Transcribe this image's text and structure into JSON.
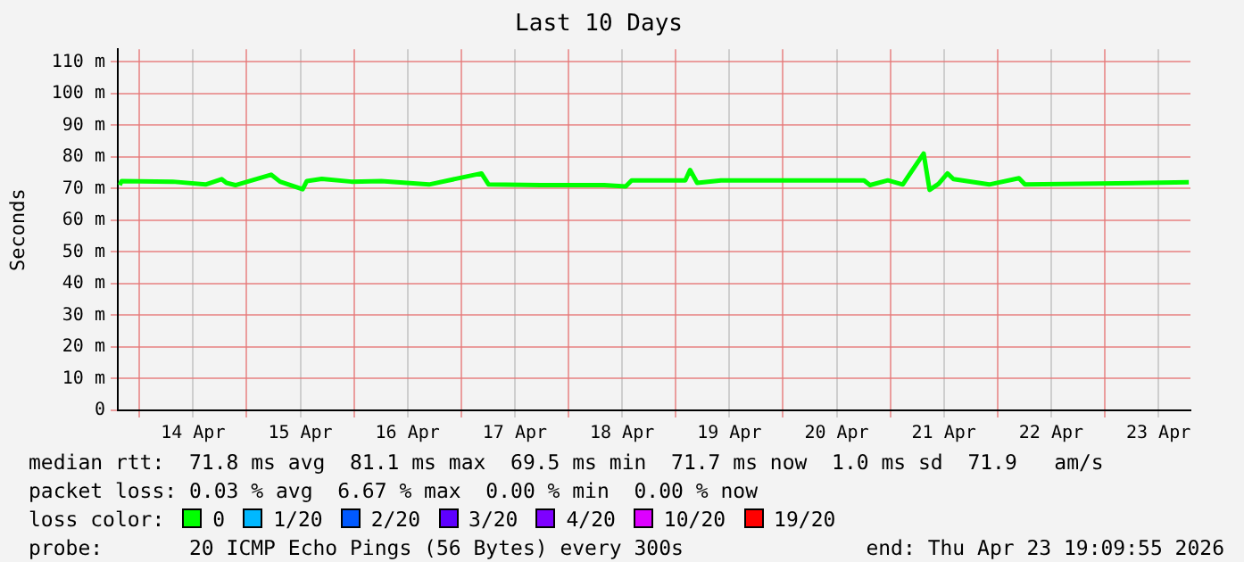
{
  "chart_data": {
    "type": "line",
    "title": "Last 10 Days",
    "ylabel": "Seconds",
    "legend_title": "loss color:",
    "legend": "bottom",
    "xlim": [
      "2026-04-13T19:10",
      "2026-04-23T19:10"
    ],
    "xticks": [
      {
        "value": "2026-04-14T00:00",
        "label": null
      },
      {
        "value": "2026-04-14T12:00",
        "label": "14 Apr"
      },
      {
        "value": "2026-04-15T00:00",
        "label": null
      },
      {
        "value": "2026-04-15T12:00",
        "label": "15 Apr"
      },
      {
        "value": "2026-04-16T00:00",
        "label": null
      },
      {
        "value": "2026-04-16T12:00",
        "label": "16 Apr"
      },
      {
        "value": "2026-04-17T00:00",
        "label": null
      },
      {
        "value": "2026-04-17T12:00",
        "label": "17 Apr"
      },
      {
        "value": "2026-04-18T00:00",
        "label": null
      },
      {
        "value": "2026-04-18T12:00",
        "label": "18 Apr"
      },
      {
        "value": "2026-04-19T00:00",
        "label": null
      },
      {
        "value": "2026-04-19T12:00",
        "label": "19 Apr"
      },
      {
        "value": "2026-04-20T00:00",
        "label": null
      },
      {
        "value": "2026-04-20T12:00",
        "label": "20 Apr"
      },
      {
        "value": "2026-04-21T00:00",
        "label": null
      },
      {
        "value": "2026-04-21T12:00",
        "label": "21 Apr"
      },
      {
        "value": "2026-04-22T00:00",
        "label": null
      },
      {
        "value": "2026-04-22T12:00",
        "label": "22 Apr"
      },
      {
        "value": "2026-04-23T00:00",
        "label": null
      },
      {
        "value": "2026-04-23T12:00",
        "label": "23 Apr"
      }
    ],
    "ylim": [
      0,
      114
    ],
    "yticks": [
      0,
      {
        "value": 10,
        "label": "10 m"
      },
      {
        "value": 20,
        "label": "20 m"
      },
      {
        "value": 30,
        "label": "30 m"
      },
      {
        "value": 40,
        "label": "40 m"
      },
      {
        "value": 50,
        "label": "50 m"
      },
      {
        "value": 60,
        "label": "60 m"
      },
      {
        "value": 70,
        "label": "70 m"
      },
      {
        "value": 80,
        "label": "80 m"
      },
      {
        "value": 90,
        "label": "90 m"
      },
      {
        "value": 100,
        "label": "100 m"
      },
      {
        "value": 110,
        "label": "110 m"
      }
    ],
    "grid": true,
    "marker": "none",
    "line_style": "solid",
    "x": [
      "2026-04-13T19:36",
      "2026-04-13T20:00",
      "2026-04-14T07:28",
      "2026-04-14T14:48",
      "2026-04-14T18:24",
      "2026-04-14T19:28",
      "2026-04-14T21:28",
      "2026-04-15T05:28",
      "2026-04-15T07:28",
      "2026-04-15T12:32",
      "2026-04-15T13:28",
      "2026-04-15T16:48",
      "2026-04-15T23:28",
      "2026-04-16T06:08",
      "2026-04-16T16:48",
      "2026-04-17T04:32",
      "2026-04-17T06:08",
      "2026-04-17T17:48",
      "2026-04-18T08:00",
      "2026-04-18T12:48",
      "2026-04-18T14:08",
      "2026-04-19T02:08",
      "2026-04-19T03:12",
      "2026-04-19T04:48",
      "2026-04-19T10:08",
      "2026-04-20T18:08",
      "2026-04-20T19:28",
      "2026-04-20T23:28",
      "2026-04-21T02:48",
      "2026-04-21T07:28",
      "2026-04-21T08:48",
      "2026-04-21T10:48",
      "2026-04-21T12:48",
      "2026-04-21T14:08",
      "2026-04-21T22:08",
      "2026-04-22T04:48",
      "2026-04-22T06:08",
      "2026-04-23T18:48"
    ],
    "series": [
      {
        "name": "0",
        "color": "#00ff00",
        "values": [
          71.1,
          72.4,
          72.2,
          71.3,
          73,
          71.8,
          71.1,
          74.4,
          72.2,
          69.8,
          72.4,
          73.1,
          72.2,
          72.4,
          71.3,
          74.8,
          71.3,
          71.1,
          71.1,
          70.7,
          72.6,
          72.6,
          75.9,
          71.8,
          72.6,
          72.6,
          71.1,
          72.6,
          71.3,
          81.1,
          69.6,
          71.5,
          74.8,
          73,
          71.3,
          73.3,
          71.3,
          72
        ]
      },
      {
        "name": "1/20",
        "color": "#00b8ff",
        "values": [
          null,
          null,
          null,
          null,
          null,
          null,
          null,
          null,
          null,
          null,
          null,
          null,
          null,
          null,
          null,
          null,
          null,
          null,
          null,
          null,
          null,
          null,
          null,
          null,
          null,
          null,
          null,
          null,
          null,
          null,
          null,
          null,
          null,
          null,
          null,
          null,
          null,
          null
        ]
      },
      {
        "name": "2/20",
        "color": "#0059ff",
        "values": [
          null,
          null,
          null,
          null,
          null,
          null,
          null,
          null,
          null,
          null,
          null,
          null,
          null,
          null,
          null,
          null,
          null,
          null,
          null,
          null,
          null,
          null,
          null,
          null,
          null,
          null,
          null,
          null,
          null,
          null,
          null,
          null,
          null,
          null,
          null,
          null,
          null,
          null
        ]
      },
      {
        "name": "3/20",
        "color": "#5e00ff",
        "values": [
          null,
          null,
          null,
          null,
          null,
          null,
          null,
          null,
          null,
          null,
          null,
          null,
          null,
          null,
          null,
          null,
          null,
          null,
          null,
          null,
          null,
          null,
          null,
          null,
          null,
          null,
          null,
          null,
          null,
          null,
          null,
          null,
          null,
          null,
          null,
          null,
          null,
          null
        ]
      },
      {
        "name": "4/20",
        "color": "#7e00ff",
        "values": [
          null,
          null,
          null,
          null,
          null,
          null,
          null,
          null,
          null,
          null,
          null,
          null,
          null,
          null,
          null,
          null,
          null,
          null,
          null,
          null,
          null,
          null,
          null,
          null,
          null,
          null,
          null,
          null,
          null,
          null,
          null,
          null,
          null,
          null,
          null,
          null,
          null,
          null
        ]
      },
      {
        "name": "10/20",
        "color": "#dd00ff",
        "values": [
          null,
          null,
          null,
          null,
          null,
          null,
          null,
          null,
          null,
          null,
          null,
          null,
          null,
          null,
          null,
          null,
          null,
          null,
          null,
          null,
          null,
          null,
          null,
          null,
          null,
          null,
          null,
          null,
          null,
          null,
          null,
          null,
          null,
          null,
          null,
          null,
          null,
          null
        ]
      },
      {
        "name": "19/20",
        "color": "#ff0000",
        "values": [
          null,
          null,
          null,
          null,
          null,
          null,
          null,
          null,
          null,
          null,
          null,
          null,
          null,
          null,
          null,
          null,
          null,
          null,
          null,
          null,
          null,
          null,
          null,
          null,
          null,
          null,
          null,
          null,
          null,
          null,
          null,
          null,
          null,
          null,
          null,
          null,
          null,
          null
        ]
      }
    ],
    "annotations": [
      "median rtt:  71.8 ms avg  81.1 ms max  69.5 ms min  71.7 ms now  1.0 ms sd  71.9   am/s",
      "packet loss: 0.03 % avg  6.67 % max  0.00 % min  0.00 % now",
      "probe:       20 ICMP Echo Pings (56 Bytes) every 300s",
      "end: Thu Apr 23 19:09:55 2026"
    ]
  }
}
